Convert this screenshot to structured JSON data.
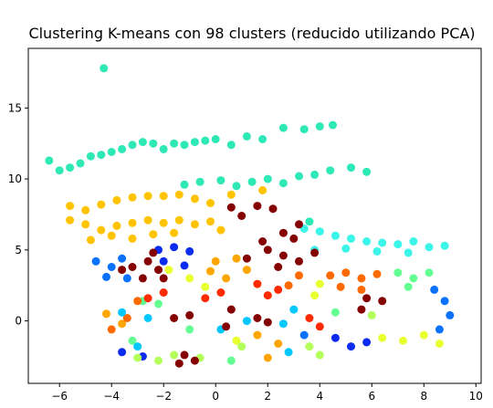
{
  "chart_data": {
    "type": "scatter",
    "title": "Clustering K-means con 98 clusters (reducido utilizando PCA)",
    "xlabel": "",
    "ylabel": "",
    "xlim": [
      -7.2,
      10.2
    ],
    "ylim": [
      -4.4,
      19.2
    ],
    "xticks": [
      -6,
      -4,
      -2,
      0,
      2,
      4,
      6,
      8,
      10
    ],
    "yticks": [
      0,
      5,
      10,
      15
    ],
    "xtick_labels": [
      "−6",
      "−4",
      "−2",
      "0",
      "2",
      "4",
      "6",
      "8",
      "10"
    ],
    "ytick_labels": [
      "0",
      "5",
      "10",
      "15"
    ],
    "grid": false,
    "legend": "none",
    "colormap": "jet",
    "n_clusters": 98,
    "clusters": [
      {
        "color": "#2ee8b6",
        "points": [
          [
            -4.3,
            17.8
          ],
          [
            -6.4,
            11.3
          ],
          [
            -6.0,
            10.6
          ],
          [
            -5.6,
            10.8
          ],
          [
            -5.2,
            11.1
          ],
          [
            -4.8,
            11.6
          ],
          [
            -4.4,
            11.7
          ],
          [
            -4.0,
            11.9
          ],
          [
            -3.6,
            12.1
          ],
          [
            -3.2,
            12.4
          ],
          [
            -2.8,
            12.6
          ],
          [
            -2.4,
            12.5
          ],
          [
            -2.0,
            12.1
          ],
          [
            -1.6,
            12.5
          ],
          [
            -1.2,
            12.4
          ],
          [
            -0.8,
            12.6
          ],
          [
            -0.4,
            12.7
          ],
          [
            0.0,
            12.8
          ],
          [
            0.6,
            12.4
          ],
          [
            1.2,
            13.0
          ],
          [
            1.8,
            12.8
          ],
          [
            2.6,
            13.6
          ],
          [
            3.4,
            13.5
          ],
          [
            4.0,
            13.7
          ],
          [
            4.5,
            13.8
          ],
          [
            -1.2,
            9.6
          ],
          [
            -0.6,
            9.8
          ],
          [
            0.2,
            9.9
          ],
          [
            0.8,
            9.5
          ],
          [
            1.4,
            9.8
          ],
          [
            2.0,
            10.0
          ],
          [
            2.6,
            9.7
          ],
          [
            3.2,
            10.2
          ],
          [
            3.8,
            10.3
          ],
          [
            4.4,
            10.6
          ],
          [
            5.2,
            10.8
          ],
          [
            5.8,
            10.5
          ],
          [
            3.6,
            7.0
          ]
        ]
      },
      {
        "color": "#ffc300",
        "points": [
          [
            -5.6,
            8.1
          ],
          [
            -5.0,
            7.8
          ],
          [
            -4.4,
            8.2
          ],
          [
            -3.8,
            8.5
          ],
          [
            -3.2,
            8.7
          ],
          [
            -2.6,
            8.8
          ],
          [
            -2.0,
            8.8
          ],
          [
            -1.4,
            8.9
          ],
          [
            -0.8,
            8.6
          ],
          [
            -0.2,
            8.3
          ],
          [
            0.6,
            8.9
          ],
          [
            1.8,
            9.2
          ],
          [
            -5.6,
            7.1
          ],
          [
            -5.0,
            6.8
          ],
          [
            -4.4,
            6.4
          ],
          [
            -3.8,
            6.7
          ],
          [
            -3.2,
            6.9
          ],
          [
            -2.6,
            7.1
          ],
          [
            -2.0,
            6.9
          ],
          [
            -1.4,
            7.1
          ],
          [
            -0.8,
            6.8
          ],
          [
            -0.2,
            7.0
          ],
          [
            -4.8,
            5.7
          ],
          [
            -4.0,
            6.0
          ],
          [
            -3.2,
            5.8
          ],
          [
            -2.4,
            6.1
          ],
          [
            -1.6,
            6.2
          ],
          [
            0.2,
            6.4
          ]
        ]
      },
      {
        "color": "#3af5e8",
        "points": [
          [
            3.4,
            6.5
          ],
          [
            4.0,
            6.3
          ],
          [
            4.6,
            6.0
          ],
          [
            5.2,
            5.8
          ],
          [
            5.8,
            5.6
          ],
          [
            6.4,
            5.5
          ],
          [
            7.0,
            5.4
          ],
          [
            7.6,
            5.6
          ],
          [
            8.2,
            5.2
          ],
          [
            8.8,
            5.3
          ],
          [
            3.8,
            5.0
          ],
          [
            5.0,
            5.1
          ],
          [
            6.2,
            4.9
          ],
          [
            7.4,
            4.8
          ]
        ]
      },
      {
        "color": "#0b2cf0",
        "points": [
          [
            -2.2,
            5.0
          ],
          [
            -1.6,
            5.2
          ],
          [
            -1.0,
            4.9
          ],
          [
            -2.0,
            4.2
          ],
          [
            -1.2,
            3.9
          ],
          [
            -3.6,
            -2.2
          ],
          [
            -2.8,
            -2.5
          ],
          [
            4.6,
            -1.2
          ],
          [
            5.2,
            -1.8
          ],
          [
            5.8,
            -1.5
          ]
        ]
      },
      {
        "color": "#0a72ff",
        "points": [
          [
            -4.6,
            4.2
          ],
          [
            -4.0,
            3.8
          ],
          [
            -3.6,
            4.4
          ],
          [
            -4.2,
            3.1
          ],
          [
            -3.4,
            3.0
          ],
          [
            8.4,
            2.2
          ],
          [
            8.8,
            1.4
          ],
          [
            9.0,
            0.4
          ],
          [
            8.6,
            -0.6
          ],
          [
            3.4,
            -1.0
          ]
        ]
      },
      {
        "color": "#ffa500",
        "points": [
          [
            0.0,
            4.2
          ],
          [
            0.8,
            4.4
          ],
          [
            1.2,
            3.6
          ],
          [
            0.4,
            3.0
          ],
          [
            -0.2,
            3.5
          ],
          [
            1.6,
            -1.0
          ],
          [
            2.4,
            -1.6
          ],
          [
            2.0,
            -2.6
          ],
          [
            -4.2,
            0.5
          ],
          [
            -3.6,
            -0.2
          ]
        ]
      },
      {
        "color": "#e8ff30",
        "points": [
          [
            -1.8,
            3.6
          ],
          [
            -1.0,
            3.0
          ],
          [
            -0.4,
            2.4
          ],
          [
            4.0,
            2.6
          ],
          [
            3.8,
            1.8
          ],
          [
            6.4,
            -1.2
          ],
          [
            7.2,
            -1.4
          ],
          [
            8.0,
            -1.0
          ],
          [
            8.6,
            -1.6
          ],
          [
            0.8,
            -1.4
          ]
        ]
      },
      {
        "color": "#64ff93",
        "points": [
          [
            7.0,
            3.4
          ],
          [
            7.6,
            3.0
          ],
          [
            8.2,
            3.4
          ],
          [
            7.4,
            2.4
          ],
          [
            -2.8,
            1.4
          ],
          [
            -2.2,
            1.2
          ],
          [
            -3.2,
            -1.4
          ],
          [
            -1.0,
            -0.6
          ],
          [
            4.6,
            0.6
          ],
          [
            0.6,
            -2.8
          ]
        ]
      },
      {
        "color": "#ff6a00",
        "points": [
          [
            4.4,
            3.2
          ],
          [
            5.0,
            3.4
          ],
          [
            5.6,
            3.0
          ],
          [
            6.2,
            3.3
          ],
          [
            4.8,
            2.4
          ],
          [
            5.6,
            2.2
          ],
          [
            -3.0,
            1.4
          ],
          [
            -3.4,
            0.2
          ],
          [
            -4.0,
            -0.6
          ],
          [
            2.8,
            2.5
          ],
          [
            3.2,
            3.2
          ]
        ]
      },
      {
        "color": "#ff2a00",
        "points": [
          [
            1.6,
            2.6
          ],
          [
            2.4,
            2.2
          ],
          [
            2.0,
            1.8
          ],
          [
            -2.0,
            2.0
          ],
          [
            -2.6,
            1.6
          ],
          [
            0.2,
            2.0
          ],
          [
            -0.4,
            1.6
          ],
          [
            3.6,
            0.2
          ],
          [
            4.0,
            -0.4
          ]
        ]
      },
      {
        "color": "#00c8ff",
        "points": [
          [
            -3.6,
            0.6
          ],
          [
            -2.6,
            0.2
          ],
          [
            0.2,
            -0.6
          ],
          [
            2.6,
            -0.2
          ],
          [
            3.0,
            0.8
          ],
          [
            1.2,
            0.0
          ],
          [
            -3.0,
            -1.8
          ],
          [
            2.8,
            -2.2
          ]
        ]
      },
      {
        "color": "#b4ff5a",
        "points": [
          [
            3.6,
            -1.8
          ],
          [
            4.0,
            -2.4
          ],
          [
            -3.0,
            -2.6
          ],
          [
            -2.2,
            -2.8
          ],
          [
            -1.6,
            -2.4
          ],
          [
            -0.6,
            -2.6
          ],
          [
            1.0,
            -1.8
          ],
          [
            6.0,
            0.4
          ]
        ]
      },
      {
        "color": "#850000",
        "points": [
          [
            -2.6,
            4.2
          ],
          [
            -2.2,
            3.6
          ],
          [
            -2.8,
            3.0
          ],
          [
            -3.2,
            3.8
          ],
          [
            -2.0,
            3.0
          ],
          [
            -3.6,
            3.6
          ],
          [
            -2.4,
            4.8
          ],
          [
            2.0,
            5.0
          ],
          [
            2.6,
            4.6
          ],
          [
            3.2,
            4.2
          ],
          [
            3.8,
            4.8
          ],
          [
            2.4,
            3.8
          ],
          [
            1.2,
            4.4
          ],
          [
            1.8,
            5.6
          ],
          [
            3.0,
            5.8
          ],
          [
            0.6,
            8.0
          ],
          [
            1.6,
            8.1
          ],
          [
            2.2,
            7.9
          ],
          [
            1.0,
            7.4
          ],
          [
            2.6,
            6.2
          ],
          [
            3.2,
            6.8
          ],
          [
            5.8,
            1.6
          ],
          [
            6.4,
            1.4
          ],
          [
            5.6,
            0.8
          ],
          [
            -1.2,
            -2.4
          ],
          [
            -1.4,
            -3.0
          ],
          [
            -0.8,
            -2.8
          ],
          [
            -1.6,
            0.2
          ],
          [
            -1.0,
            0.4
          ],
          [
            0.6,
            0.8
          ],
          [
            1.6,
            0.2
          ],
          [
            2.0,
            -0.1
          ],
          [
            0.4,
            -0.4
          ]
        ]
      }
    ]
  }
}
